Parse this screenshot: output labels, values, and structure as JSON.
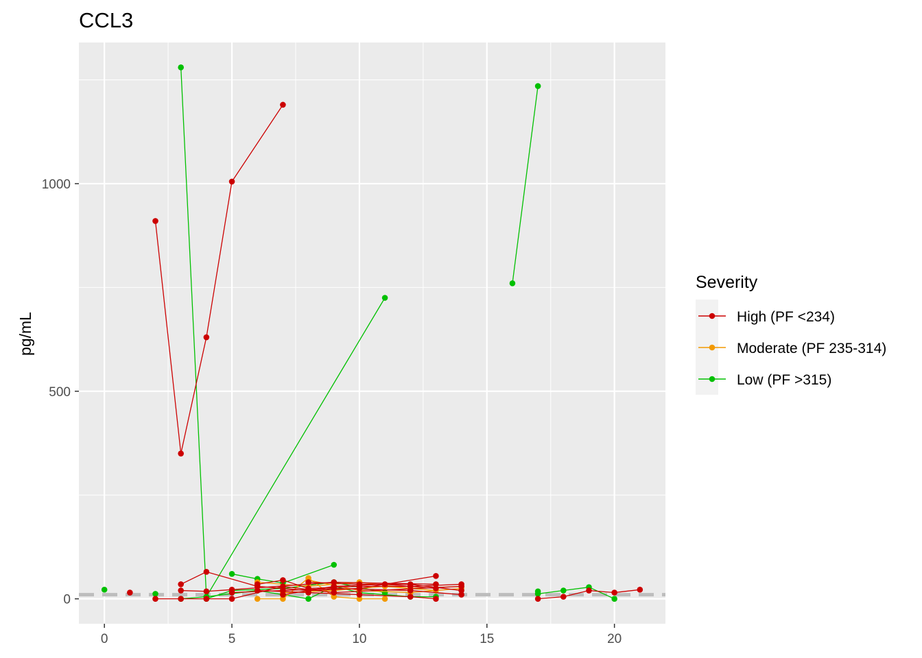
{
  "chart_data": {
    "type": "line",
    "title": "CCL3",
    "xlabel": "",
    "ylabel": "pg/mL",
    "xlim": [
      -1,
      22
    ],
    "ylim": [
      -60,
      1340
    ],
    "x_ticks": [
      0,
      5,
      10,
      15,
      20
    ],
    "y_ticks": [
      0,
      500,
      1000
    ],
    "grid": true,
    "reference_line": {
      "y": 10,
      "style": "dashed",
      "color": "#bdbdbd"
    },
    "legend": {
      "title": "Severity",
      "position": "right",
      "entries": [
        {
          "label": "High (PF <234)",
          "color": "#cc0000"
        },
        {
          "label": "Moderate (PF 235-314)",
          "color": "#f29900"
        },
        {
          "label": "Low (PF >315)",
          "color": "#00c000"
        }
      ]
    },
    "series": [
      {
        "severity": 2,
        "points": [
          [
            2,
            910
          ],
          [
            3,
            350
          ],
          [
            4,
            630
          ],
          [
            5,
            1005
          ],
          [
            7,
            1190
          ]
        ]
      },
      {
        "severity": 0,
        "points": [
          [
            3,
            1280
          ],
          [
            4,
            5
          ],
          [
            11,
            725
          ]
        ]
      },
      {
        "severity": 0,
        "points": [
          [
            16,
            760
          ],
          [
            17,
            1235
          ]
        ]
      },
      {
        "severity": 2,
        "points": [
          [
            1,
            15
          ]
        ]
      },
      {
        "severity": 0,
        "points": [
          [
            0,
            22
          ]
        ]
      },
      {
        "severity": 0,
        "points": [
          [
            2,
            12
          ]
        ]
      },
      {
        "severity": 2,
        "points": [
          [
            3,
            35
          ],
          [
            4,
            65
          ],
          [
            6,
            30
          ],
          [
            8,
            20
          ],
          [
            10,
            25
          ],
          [
            13,
            55
          ]
        ]
      },
      {
        "severity": 2,
        "points": [
          [
            3,
            20
          ],
          [
            4,
            18
          ],
          [
            5,
            22
          ],
          [
            9,
            40
          ],
          [
            13,
            35
          ]
        ]
      },
      {
        "severity": 2,
        "points": [
          [
            2,
            0
          ],
          [
            3,
            0
          ],
          [
            4,
            0
          ],
          [
            5,
            0
          ],
          [
            7,
            30
          ],
          [
            9,
            15
          ],
          [
            14,
            30
          ]
        ]
      },
      {
        "severity": 2,
        "points": [
          [
            6,
            35
          ],
          [
            7,
            45
          ],
          [
            8,
            25
          ],
          [
            10,
            30
          ],
          [
            12,
            30
          ],
          [
            14,
            35
          ]
        ]
      },
      {
        "severity": 2,
        "points": [
          [
            6,
            20
          ],
          [
            8,
            15
          ],
          [
            10,
            10
          ],
          [
            12,
            5
          ],
          [
            13,
            0
          ]
        ]
      },
      {
        "severity": 2,
        "points": [
          [
            7,
            10
          ],
          [
            9,
            30
          ],
          [
            11,
            35
          ],
          [
            13,
            25
          ]
        ]
      },
      {
        "severity": 2,
        "points": [
          [
            5,
            15
          ],
          [
            7,
            20
          ],
          [
            9,
            25
          ],
          [
            12,
            20
          ],
          [
            14,
            10
          ]
        ]
      },
      {
        "severity": 2,
        "points": [
          [
            8,
            40
          ],
          [
            10,
            35
          ],
          [
            12,
            35
          ],
          [
            14,
            20
          ]
        ]
      },
      {
        "severity": 2,
        "points": [
          [
            17,
            0
          ],
          [
            18,
            5
          ],
          [
            19,
            20
          ],
          [
            20,
            15
          ],
          [
            21,
            22
          ]
        ]
      },
      {
        "severity": 1,
        "points": [
          [
            6,
            0
          ],
          [
            7,
            0
          ],
          [
            8,
            50
          ],
          [
            9,
            5
          ],
          [
            10,
            0
          ],
          [
            11,
            0
          ]
        ]
      },
      {
        "severity": 1,
        "points": [
          [
            6,
            40
          ],
          [
            8,
            30
          ],
          [
            10,
            40
          ],
          [
            12,
            25
          ],
          [
            14,
            30
          ]
        ]
      },
      {
        "severity": 1,
        "points": [
          [
            7,
            15
          ],
          [
            9,
            20
          ],
          [
            11,
            30
          ],
          [
            13,
            20
          ]
        ]
      },
      {
        "severity": 1,
        "points": [
          [
            8,
            45
          ],
          [
            10,
            20
          ],
          [
            12,
            15
          ],
          [
            14,
            25
          ]
        ]
      },
      {
        "severity": 0,
        "points": [
          [
            4,
            0
          ],
          [
            5,
            20
          ],
          [
            7,
            25
          ],
          [
            9,
            40
          ],
          [
            11,
            15
          ]
        ]
      },
      {
        "severity": 0,
        "points": [
          [
            5,
            60
          ],
          [
            6,
            48
          ],
          [
            7,
            38
          ],
          [
            9,
            82
          ]
        ]
      },
      {
        "severity": 0,
        "points": [
          [
            6,
            20
          ],
          [
            8,
            0
          ],
          [
            9,
            30
          ],
          [
            10,
            15
          ],
          [
            12,
            5
          ],
          [
            13,
            5
          ]
        ]
      },
      {
        "severity": 0,
        "points": [
          [
            3,
            0
          ],
          [
            4,
            5
          ],
          [
            6,
            20
          ]
        ]
      },
      {
        "severity": 0,
        "points": [
          [
            17,
            18
          ],
          [
            17,
            12
          ],
          [
            18,
            20
          ],
          [
            19,
            28
          ],
          [
            20,
            0
          ]
        ]
      }
    ]
  }
}
